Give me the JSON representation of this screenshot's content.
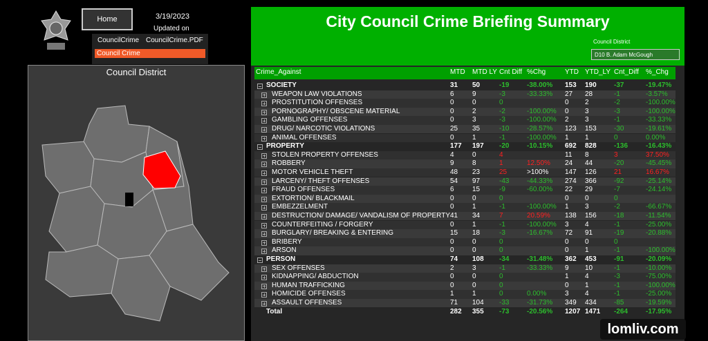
{
  "header": {
    "home": "Home",
    "date": "3/19/2023",
    "updated": "Updated on",
    "menu": {
      "items": [
        "CouncilCrime",
        "CouncilCrime.PDF"
      ],
      "selected": "Council Crime"
    },
    "title": "City Council Crime Briefing Summary",
    "slicer": {
      "label": "Council District",
      "value": "D10 B. Adam McGough"
    }
  },
  "map": {
    "title": "Council District"
  },
  "table": {
    "columns": [
      "Crime_Against",
      "MTD",
      "MTD LY",
      "Cnt Diff",
      "%Chg",
      "YTD",
      "YTD_LY",
      "Cnt_Diff",
      "%_Chg"
    ],
    "groups": [
      {
        "name": "SOCIETY",
        "cells": [
          31,
          50,
          -19,
          "-38.00%",
          153,
          190,
          -37,
          "-19.47%"
        ],
        "items": [
          {
            "name": "WEAPON LAW VIOLATIONS",
            "cells": [
              6,
              9,
              -3,
              "-33.33%",
              27,
              28,
              -1,
              "-3.57%"
            ]
          },
          {
            "name": "PROSTITUTION OFFENSES",
            "cells": [
              0,
              0,
              0,
              null,
              0,
              2,
              -2,
              "-100.00%"
            ]
          },
          {
            "name": "PORNOGRAPHY/ OBSCENE MATERIAL",
            "cells": [
              0,
              2,
              -2,
              "-100.00%",
              0,
              3,
              -3,
              "-100.00%"
            ]
          },
          {
            "name": "GAMBLING OFFENSES",
            "cells": [
              0,
              3,
              -3,
              "-100.00%",
              2,
              3,
              -1,
              "-33.33%"
            ]
          },
          {
            "name": "DRUG/ NARCOTIC VIOLATIONS",
            "cells": [
              25,
              35,
              -10,
              "-28.57%",
              123,
              153,
              -30,
              "-19.61%"
            ]
          },
          {
            "name": "ANIMAL OFFENSES",
            "cells": [
              0,
              1,
              -1,
              "-100.00%",
              1,
              1,
              0,
              "0.00%"
            ]
          }
        ]
      },
      {
        "name": "PROPERTY",
        "cells": [
          177,
          197,
          -20,
          "-10.15%",
          692,
          828,
          -136,
          "-16.43%"
        ],
        "items": [
          {
            "name": "STOLEN PROPERTY OFFENSES",
            "cells": [
              4,
              0,
              4,
              null,
              11,
              8,
              3,
              "37.50%"
            ]
          },
          {
            "name": "ROBBERY",
            "cells": [
              9,
              8,
              1,
              "12.50%",
              24,
              44,
              -20,
              "-45.45%"
            ]
          },
          {
            "name": "MOTOR VEHICLE THEFT",
            "cells": [
              48,
              23,
              25,
              ">100%",
              147,
              126,
              21,
              "16.67%"
            ]
          },
          {
            "name": "LARCENY/ THEFT OFFENSES",
            "cells": [
              54,
              97,
              -43,
              "-44.33%",
              274,
              366,
              -92,
              "-25.14%"
            ]
          },
          {
            "name": "FRAUD OFFENSES",
            "cells": [
              6,
              15,
              -9,
              "-60.00%",
              22,
              29,
              -7,
              "-24.14%"
            ]
          },
          {
            "name": "EXTORTION/ BLACKMAIL",
            "cells": [
              0,
              0,
              0,
              null,
              0,
              0,
              0,
              null
            ]
          },
          {
            "name": "EMBEZZELMENT",
            "cells": [
              0,
              1,
              -1,
              "-100.00%",
              1,
              3,
              -2,
              "-66.67%"
            ]
          },
          {
            "name": "DESTRUCTION/ DAMAGE/ VANDALISM OF PROPERTY",
            "cells": [
              41,
              34,
              7,
              "20.59%",
              138,
              156,
              -18,
              "-11.54%"
            ]
          },
          {
            "name": "COUNTERFEITING / FORGERY",
            "cells": [
              0,
              1,
              -1,
              "-100.00%",
              3,
              4,
              -1,
              "-25.00%"
            ]
          },
          {
            "name": "BURGLARY/ BREAKING & ENTERING",
            "cells": [
              15,
              18,
              -3,
              "-16.67%",
              72,
              91,
              -19,
              "-20.88%"
            ]
          },
          {
            "name": "BRIBERY",
            "cells": [
              0,
              0,
              0,
              null,
              0,
              0,
              0,
              null
            ]
          },
          {
            "name": "ARSON",
            "cells": [
              0,
              0,
              0,
              null,
              0,
              1,
              -1,
              "-100.00%"
            ]
          }
        ]
      },
      {
        "name": "PERSON",
        "cells": [
          74,
          108,
          -34,
          "-31.48%",
          362,
          453,
          -91,
          "-20.09%"
        ],
        "items": [
          {
            "name": "SEX OFFENSES",
            "cells": [
              2,
              3,
              -1,
              "-33.33%",
              9,
              10,
              -1,
              "-10.00%"
            ]
          },
          {
            "name": "KIDNAPPING/ ABDUCTION",
            "cells": [
              0,
              0,
              0,
              null,
              1,
              4,
              -3,
              "-75.00%"
            ]
          },
          {
            "name": "HUMAN TRAFFICKING",
            "cells": [
              0,
              0,
              0,
              null,
              0,
              1,
              -1,
              "-100.00%"
            ]
          },
          {
            "name": "HOMICIDE OFFENSES",
            "cells": [
              1,
              1,
              0,
              "0.00%",
              3,
              4,
              -1,
              "-25.00%"
            ]
          },
          {
            "name": "ASSAULT OFFENSES",
            "cells": [
              71,
              104,
              -33,
              "-31.73%",
              349,
              434,
              -85,
              "-19.59%"
            ]
          }
        ]
      }
    ],
    "total": {
      "name": "Total",
      "cells": [
        282,
        355,
        -73,
        "-20.56%",
        1207,
        1471,
        -264,
        "-17.95%"
      ]
    }
  },
  "watermark": "lomliv.com"
}
